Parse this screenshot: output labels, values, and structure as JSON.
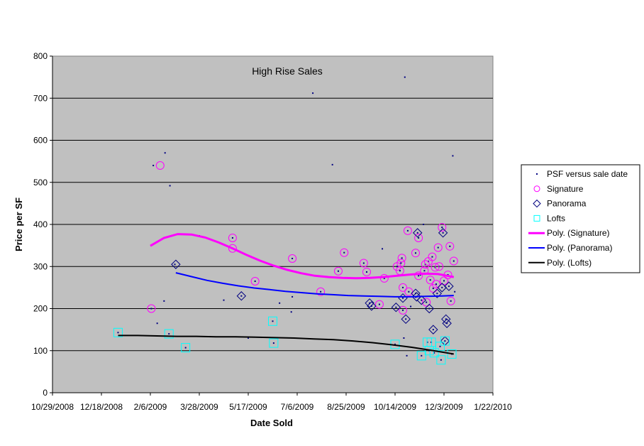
{
  "chart_data": {
    "type": "scatter",
    "title": "High Rise Sales",
    "xlabel": "Date Sold",
    "ylabel": "Price per SF",
    "x_axis_type": "date",
    "xlim": [
      "2008-10-29",
      "2010-01-22"
    ],
    "x_ticks": [
      "10/29/2008",
      "12/18/2008",
      "2/6/2009",
      "3/28/2009",
      "5/17/2009",
      "7/6/2009",
      "8/25/2009",
      "10/14/2009",
      "12/3/2009",
      "1/22/2010"
    ],
    "x_tick_values": [
      "2008-10-29",
      "2008-12-18",
      "2009-02-06",
      "2009-03-28",
      "2009-05-17",
      "2009-07-06",
      "2009-08-25",
      "2009-10-14",
      "2009-12-03",
      "2010-01-22"
    ],
    "ylim": [
      0,
      800
    ],
    "y_ticks": [
      0,
      100,
      200,
      300,
      400,
      500,
      600,
      700,
      800
    ],
    "grid": "horizontal",
    "plot_background": "#c0c0c0",
    "legend_position": "right",
    "series": [
      {
        "name": "PSF versus sale date",
        "marker": "dot",
        "color": "#000080",
        "points": [
          [
            "2009-01-04",
            143
          ],
          [
            "2009-02-07",
            200
          ],
          [
            "2009-02-09",
            540
          ],
          [
            "2009-02-13",
            165
          ],
          [
            "2009-02-20",
            218
          ],
          [
            "2009-02-21",
            570
          ],
          [
            "2009-02-25",
            140
          ],
          [
            "2009-02-26",
            492
          ],
          [
            "2009-03-03",
            305
          ],
          [
            "2009-03-14",
            107
          ],
          [
            "2009-03-28",
            373
          ],
          [
            "2009-04-22",
            220
          ],
          [
            "2009-05-01",
            343
          ],
          [
            "2009-05-01",
            368
          ],
          [
            "2009-05-10",
            230
          ],
          [
            "2009-05-17",
            130
          ],
          [
            "2009-05-24",
            265
          ],
          [
            "2009-06-11",
            170
          ],
          [
            "2009-06-12",
            118
          ],
          [
            "2009-06-18",
            213
          ],
          [
            "2009-06-30",
            192
          ],
          [
            "2009-07-01",
            319
          ],
          [
            "2009-07-01",
            228
          ],
          [
            "2009-07-22",
            712
          ],
          [
            "2009-07-30",
            240
          ],
          [
            "2009-08-11",
            542
          ],
          [
            "2009-08-17",
            289
          ],
          [
            "2009-08-23",
            333
          ],
          [
            "2009-09-12",
            308
          ],
          [
            "2009-09-15",
            287
          ],
          [
            "2009-09-18",
            213
          ],
          [
            "2009-09-20",
            206
          ],
          [
            "2009-09-28",
            210
          ],
          [
            "2009-10-01",
            342
          ],
          [
            "2009-10-03",
            272
          ],
          [
            "2009-10-14",
            115
          ],
          [
            "2009-10-15",
            203
          ],
          [
            "2009-10-16",
            300
          ],
          [
            "2009-10-19",
            290
          ],
          [
            "2009-10-20",
            308
          ],
          [
            "2009-10-21",
            320
          ],
          [
            "2009-10-22",
            250
          ],
          [
            "2009-10-22",
            196
          ],
          [
            "2009-10-22",
            225
          ],
          [
            "2009-10-23",
            130
          ],
          [
            "2009-10-24",
            750
          ],
          [
            "2009-10-25",
            175
          ],
          [
            "2009-10-26",
            88
          ],
          [
            "2009-10-27",
            385
          ],
          [
            "2009-10-28",
            240
          ],
          [
            "2009-10-30",
            205
          ],
          [
            "2009-11-04",
            332
          ],
          [
            "2009-11-04",
            236
          ],
          [
            "2009-11-05",
            228
          ],
          [
            "2009-11-06",
            380
          ],
          [
            "2009-11-07",
            368
          ],
          [
            "2009-11-07",
            278
          ],
          [
            "2009-11-09",
            280
          ],
          [
            "2009-11-10",
            220
          ],
          [
            "2009-11-10",
            88
          ],
          [
            "2009-11-12",
            400
          ],
          [
            "2009-11-13",
            290
          ],
          [
            "2009-11-14",
            305
          ],
          [
            "2009-11-15",
            215
          ],
          [
            "2009-11-16",
            120
          ],
          [
            "2009-11-17",
            312
          ],
          [
            "2009-11-18",
            200
          ],
          [
            "2009-11-18",
            100
          ],
          [
            "2009-11-19",
            268
          ],
          [
            "2009-11-20",
            120
          ],
          [
            "2009-11-21",
            323
          ],
          [
            "2009-11-22",
            248
          ],
          [
            "2009-11-22",
            150
          ],
          [
            "2009-11-23",
            95
          ],
          [
            "2009-11-24",
            298
          ],
          [
            "2009-11-25",
            258
          ],
          [
            "2009-11-26",
            236
          ],
          [
            "2009-11-27",
            345
          ],
          [
            "2009-11-28",
            300
          ],
          [
            "2009-11-29",
            110
          ],
          [
            "2009-11-30",
            78
          ],
          [
            "2009-12-01",
            393
          ],
          [
            "2009-12-01",
            250
          ],
          [
            "2009-12-02",
            380
          ],
          [
            "2009-12-03",
            266
          ],
          [
            "2009-12-04",
            123
          ],
          [
            "2009-12-05",
            175
          ],
          [
            "2009-12-06",
            165
          ],
          [
            "2009-12-07",
            280
          ],
          [
            "2009-12-08",
            253
          ],
          [
            "2009-12-09",
            348
          ],
          [
            "2009-12-10",
            218
          ],
          [
            "2009-12-11",
            92
          ],
          [
            "2009-12-12",
            563
          ],
          [
            "2009-12-13",
            313
          ],
          [
            "2009-12-14",
            240
          ]
        ]
      },
      {
        "name": "Signature",
        "marker": "circle",
        "color": "#ff00ff",
        "points": [
          [
            "2009-02-07",
            200
          ],
          [
            "2009-02-16",
            540
          ],
          [
            "2009-05-01",
            343
          ],
          [
            "2009-05-01",
            368
          ],
          [
            "2009-05-24",
            265
          ],
          [
            "2009-07-01",
            319
          ],
          [
            "2009-07-30",
            240
          ],
          [
            "2009-08-17",
            289
          ],
          [
            "2009-08-23",
            333
          ],
          [
            "2009-09-12",
            308
          ],
          [
            "2009-09-15",
            287
          ],
          [
            "2009-09-28",
            210
          ],
          [
            "2009-10-03",
            272
          ],
          [
            "2009-10-16",
            300
          ],
          [
            "2009-10-19",
            290
          ],
          [
            "2009-10-20",
            308
          ],
          [
            "2009-10-21",
            320
          ],
          [
            "2009-10-22",
            250
          ],
          [
            "2009-10-22",
            196
          ],
          [
            "2009-10-27",
            385
          ],
          [
            "2009-10-28",
            240
          ],
          [
            "2009-11-04",
            332
          ],
          [
            "2009-11-07",
            368
          ],
          [
            "2009-11-07",
            278
          ],
          [
            "2009-11-13",
            290
          ],
          [
            "2009-11-14",
            305
          ],
          [
            "2009-11-15",
            215
          ],
          [
            "2009-11-17",
            312
          ],
          [
            "2009-11-19",
            268
          ],
          [
            "2009-11-21",
            323
          ],
          [
            "2009-11-22",
            248
          ],
          [
            "2009-11-24",
            298
          ],
          [
            "2009-11-25",
            258
          ],
          [
            "2009-11-27",
            345
          ],
          [
            "2009-11-28",
            300
          ],
          [
            "2009-12-01",
            393
          ],
          [
            "2009-12-03",
            266
          ],
          [
            "2009-12-07",
            280
          ],
          [
            "2009-12-09",
            348
          ],
          [
            "2009-12-10",
            218
          ],
          [
            "2009-12-13",
            313
          ]
        ]
      },
      {
        "name": "Panorama",
        "marker": "diamond",
        "color": "#000080",
        "points": [
          [
            "2009-03-04",
            305
          ],
          [
            "2009-05-10",
            230
          ],
          [
            "2009-09-18",
            213
          ],
          [
            "2009-09-20",
            206
          ],
          [
            "2009-10-15",
            203
          ],
          [
            "2009-10-22",
            225
          ],
          [
            "2009-10-25",
            175
          ],
          [
            "2009-11-04",
            236
          ],
          [
            "2009-11-05",
            228
          ],
          [
            "2009-11-06",
            380
          ],
          [
            "2009-11-10",
            220
          ],
          [
            "2009-11-18",
            200
          ],
          [
            "2009-11-22",
            150
          ],
          [
            "2009-11-26",
            236
          ],
          [
            "2009-12-01",
            250
          ],
          [
            "2009-12-02",
            380
          ],
          [
            "2009-12-05",
            175
          ],
          [
            "2009-12-06",
            165
          ],
          [
            "2009-12-08",
            253
          ],
          [
            "2009-12-04",
            123
          ]
        ]
      },
      {
        "name": "Lofts",
        "marker": "square",
        "color": "#00ffff",
        "points": [
          [
            "2009-01-04",
            143
          ],
          [
            "2009-02-25",
            140
          ],
          [
            "2009-03-14",
            107
          ],
          [
            "2009-06-11",
            170
          ],
          [
            "2009-06-12",
            118
          ],
          [
            "2009-10-14",
            115
          ],
          [
            "2009-11-10",
            88
          ],
          [
            "2009-11-16",
            120
          ],
          [
            "2009-11-18",
            100
          ],
          [
            "2009-11-20",
            120
          ],
          [
            "2009-11-23",
            95
          ],
          [
            "2009-11-29",
            110
          ],
          [
            "2009-11-30",
            78
          ],
          [
            "2009-12-04",
            123
          ],
          [
            "2009-12-11",
            92
          ]
        ]
      },
      {
        "name": "Poly. (Signature)",
        "marker": "line",
        "color": "#ff00ff",
        "points": [
          [
            "2009-02-06",
            349
          ],
          [
            "2009-02-20",
            368
          ],
          [
            "2009-03-06",
            377
          ],
          [
            "2009-03-20",
            376
          ],
          [
            "2009-04-03",
            369
          ],
          [
            "2009-04-17",
            357
          ],
          [
            "2009-05-01",
            343
          ],
          [
            "2009-05-15",
            328
          ],
          [
            "2009-05-29",
            314
          ],
          [
            "2009-06-12",
            302
          ],
          [
            "2009-06-26",
            292
          ],
          [
            "2009-07-10",
            284
          ],
          [
            "2009-07-24",
            278
          ],
          [
            "2009-08-07",
            275
          ],
          [
            "2009-08-21",
            273
          ],
          [
            "2009-09-04",
            272
          ],
          [
            "2009-09-18",
            273
          ],
          [
            "2009-10-02",
            275
          ],
          [
            "2009-10-16",
            278
          ],
          [
            "2009-10-30",
            281
          ],
          [
            "2009-11-13",
            283
          ],
          [
            "2009-11-27",
            282
          ],
          [
            "2009-12-13",
            275
          ]
        ]
      },
      {
        "name": "Poly. (Panorama)",
        "marker": "line",
        "color": "#0000ff",
        "points": [
          [
            "2009-03-04",
            285
          ],
          [
            "2009-03-20",
            276
          ],
          [
            "2009-04-05",
            267
          ],
          [
            "2009-04-21",
            260
          ],
          [
            "2009-05-07",
            254
          ],
          [
            "2009-05-23",
            249
          ],
          [
            "2009-06-08",
            245
          ],
          [
            "2009-06-24",
            241
          ],
          [
            "2009-07-10",
            238
          ],
          [
            "2009-07-26",
            235
          ],
          [
            "2009-08-11",
            233
          ],
          [
            "2009-08-27",
            231
          ],
          [
            "2009-09-12",
            230
          ],
          [
            "2009-09-28",
            229
          ],
          [
            "2009-10-14",
            228
          ],
          [
            "2009-10-30",
            228
          ],
          [
            "2009-11-15",
            229
          ],
          [
            "2009-12-01",
            230
          ],
          [
            "2009-12-13",
            231
          ]
        ]
      },
      {
        "name": "Poly. (Lofts)",
        "marker": "line",
        "color": "#000000",
        "points": [
          [
            "2009-01-04",
            136
          ],
          [
            "2009-01-24",
            136
          ],
          [
            "2009-02-13",
            135
          ],
          [
            "2009-03-05",
            134
          ],
          [
            "2009-03-25",
            134
          ],
          [
            "2009-04-14",
            133
          ],
          [
            "2009-05-04",
            133
          ],
          [
            "2009-05-24",
            132
          ],
          [
            "2009-06-13",
            131
          ],
          [
            "2009-07-03",
            130
          ],
          [
            "2009-07-23",
            128
          ],
          [
            "2009-08-12",
            126
          ],
          [
            "2009-09-01",
            123
          ],
          [
            "2009-09-21",
            119
          ],
          [
            "2009-10-11",
            114
          ],
          [
            "2009-10-31",
            108
          ],
          [
            "2009-11-20",
            101
          ],
          [
            "2009-12-13",
            92
          ]
        ]
      }
    ]
  }
}
